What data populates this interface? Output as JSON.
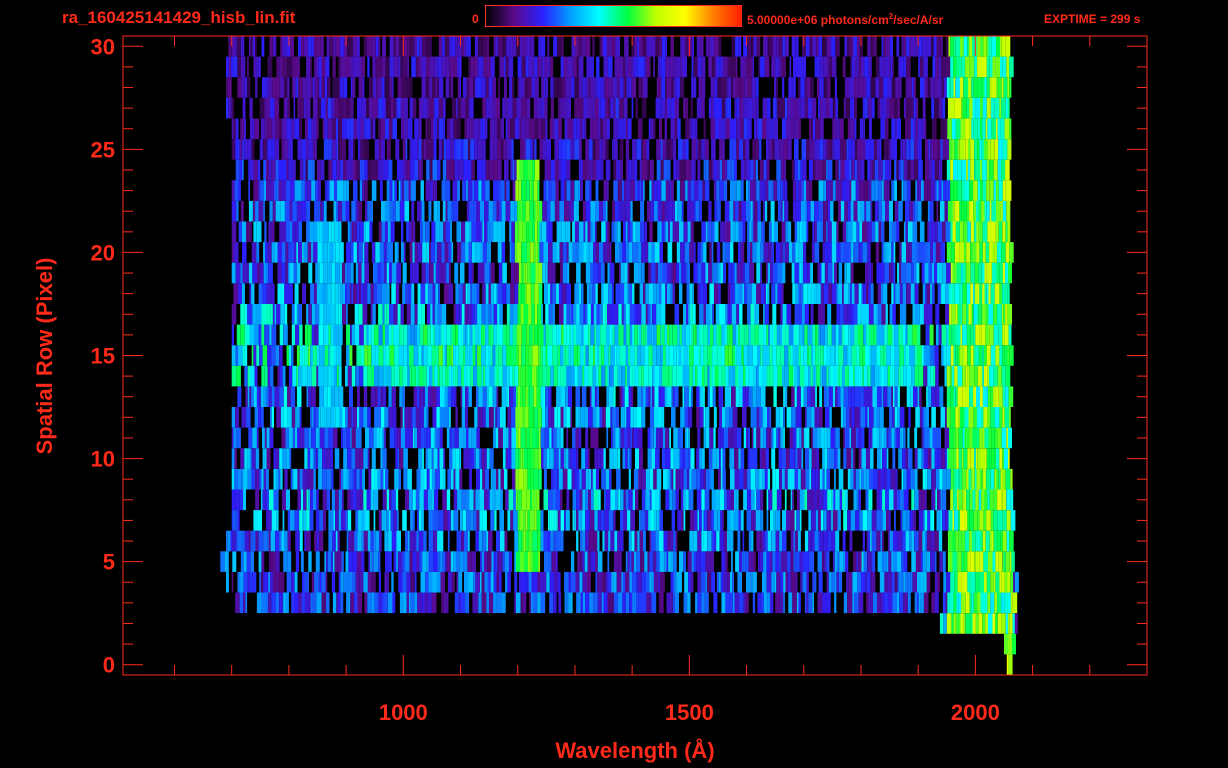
{
  "header": {
    "title": "ra_160425141429_hisb_lin.fit",
    "colorbar_min_label": "0",
    "colorbar_max_value": "5.00000e+06 photons/cm",
    "colorbar_max_exp": "2",
    "colorbar_max_unit": "/sec/A/sr",
    "exptime": "EXPTIME = 299 s"
  },
  "colors": {
    "axis": "#ff2a1a",
    "background": "#000000",
    "colormap": [
      "#000000",
      "#5a0a8c",
      "#2a20ff",
      "#00a0ff",
      "#00ffff",
      "#00ff40",
      "#c0ff00",
      "#ffff00",
      "#ff8000",
      "#ff2000"
    ]
  },
  "chart_data": {
    "type": "heatmap",
    "title": "ra_160425141429_hisb_lin.fit",
    "xlabel": "Wavelength (Å)",
    "ylabel": "Spatial Row (Pixel)",
    "xlim": [
      510,
      2300
    ],
    "ylim": [
      -0.5,
      30.5
    ],
    "xticks": [
      1000,
      1500,
      2000
    ],
    "yticks": [
      0,
      5,
      10,
      15,
      20,
      25,
      30
    ],
    "color_scale": {
      "min": 0,
      "max": 5000000,
      "unit": "photons/cm^2/sec/A/sr",
      "scale": "linear"
    },
    "rows": 31,
    "rows_detail": [
      {
        "row": 0,
        "x_start": 2055,
        "x_end": 2060,
        "level": 0.55
      },
      {
        "row": 1,
        "x_start": 2050,
        "x_end": 2065,
        "level": 0.45
      },
      {
        "row": 2,
        "x_start": 1930,
        "x_end": 2070,
        "level": 0.35
      },
      {
        "row": 3,
        "x_start": 700,
        "x_end": 2070,
        "level": 0.25
      },
      {
        "row": 4,
        "x_start": 690,
        "x_end": 2070,
        "level": 0.26
      },
      {
        "row": 5,
        "x_start": 680,
        "x_end": 2070,
        "level": 0.27
      },
      {
        "row": 6,
        "x_start": 690,
        "x_end": 2065,
        "level": 0.3
      },
      {
        "row": 7,
        "x_start": 700,
        "x_end": 2065,
        "level": 0.32
      },
      {
        "row": 8,
        "x_start": 700,
        "x_end": 2065,
        "level": 0.34
      },
      {
        "row": 9,
        "x_start": 700,
        "x_end": 2065,
        "level": 0.31
      },
      {
        "row": 10,
        "x_start": 700,
        "x_end": 2060,
        "level": 0.3
      },
      {
        "row": 11,
        "x_start": 700,
        "x_end": 2060,
        "level": 0.3
      },
      {
        "row": 12,
        "x_start": 700,
        "x_end": 2060,
        "level": 0.31
      },
      {
        "row": 13,
        "x_start": 700,
        "x_end": 2060,
        "level": 0.32
      },
      {
        "row": 14,
        "x_start": 700,
        "x_end": 2060,
        "level": 0.38
      },
      {
        "row": 15,
        "x_start": 700,
        "x_end": 2060,
        "level": 0.42
      },
      {
        "row": 16,
        "x_start": 700,
        "x_end": 2060,
        "level": 0.4
      },
      {
        "row": 17,
        "x_start": 700,
        "x_end": 2060,
        "level": 0.34
      },
      {
        "row": 18,
        "x_start": 700,
        "x_end": 2060,
        "level": 0.3
      },
      {
        "row": 19,
        "x_start": 700,
        "x_end": 2060,
        "level": 0.29
      },
      {
        "row": 20,
        "x_start": 700,
        "x_end": 2060,
        "level": 0.29
      },
      {
        "row": 21,
        "x_start": 700,
        "x_end": 2060,
        "level": 0.28
      },
      {
        "row": 22,
        "x_start": 700,
        "x_end": 2060,
        "level": 0.28
      },
      {
        "row": 23,
        "x_start": 700,
        "x_end": 2060,
        "level": 0.26
      },
      {
        "row": 24,
        "x_start": 700,
        "x_end": 2060,
        "level": 0.2
      },
      {
        "row": 25,
        "x_start": 700,
        "x_end": 2060,
        "level": 0.18
      },
      {
        "row": 26,
        "x_start": 700,
        "x_end": 2060,
        "level": 0.17
      },
      {
        "row": 27,
        "x_start": 690,
        "x_end": 2060,
        "level": 0.17
      },
      {
        "row": 28,
        "x_start": 690,
        "x_end": 2060,
        "level": 0.16
      },
      {
        "row": 29,
        "x_start": 690,
        "x_end": 2060,
        "level": 0.16
      },
      {
        "row": 30,
        "x_start": 680,
        "x_end": 2060,
        "level": 0.16
      }
    ],
    "emission_features": [
      {
        "name": "Lyman-alpha",
        "x": 1216,
        "rows": [
          5,
          24
        ],
        "level": 0.62
      },
      {
        "name": "arc",
        "x": 870,
        "rows": [
          12,
          21
        ],
        "level": 0.4
      },
      {
        "name": "band",
        "x_range": [
          930,
          1900
        ],
        "rows": [
          14,
          16
        ],
        "level": 0.45
      },
      {
        "name": "red edge",
        "x_range": [
          1950,
          2065
        ],
        "rows": [
          0,
          30
        ],
        "level": 0.6
      }
    ]
  }
}
